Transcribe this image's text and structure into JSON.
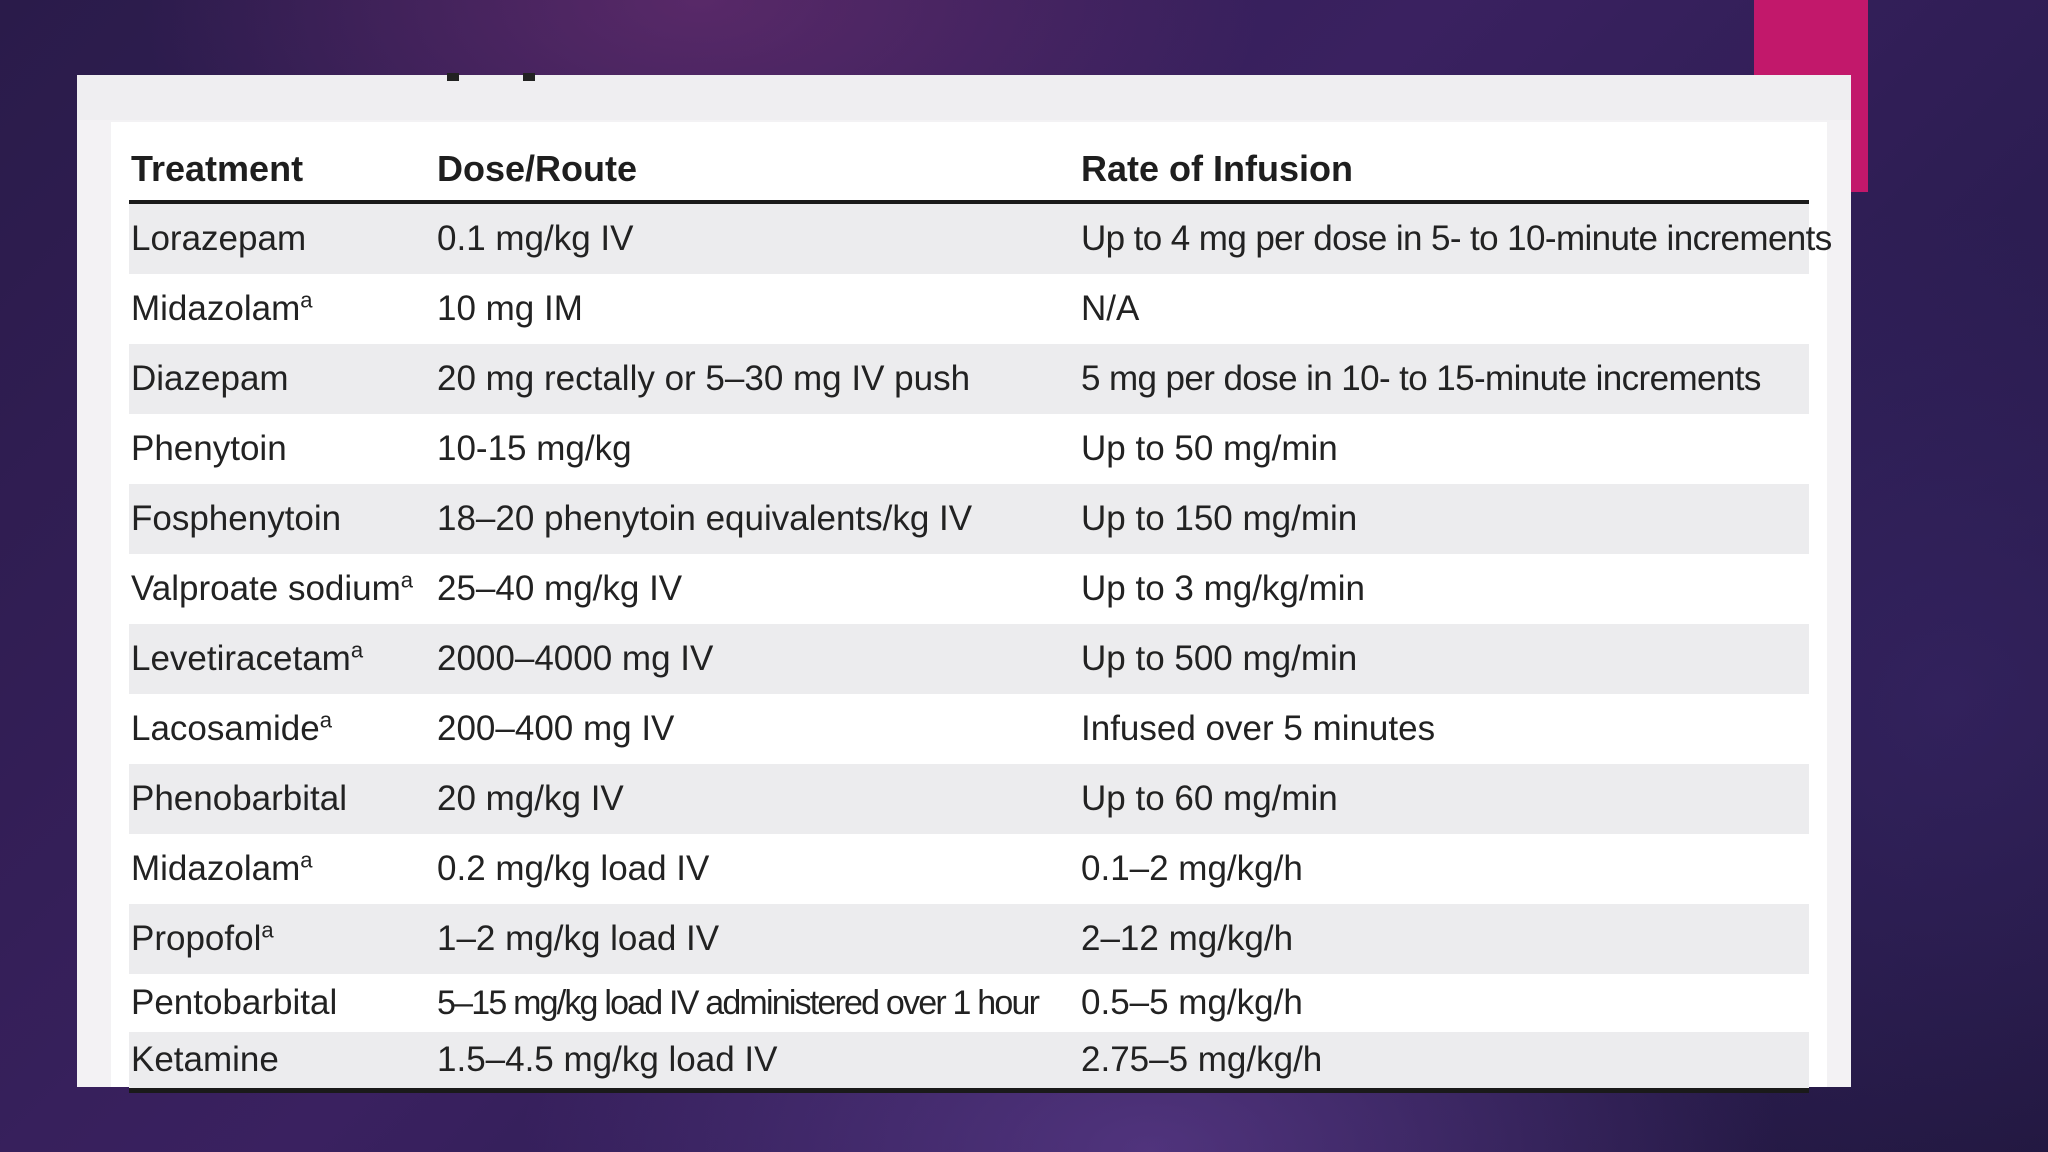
{
  "table": {
    "headers": [
      "Treatment",
      "Dose/Route",
      "Rate of Infusion"
    ],
    "rows": [
      {
        "treatment": "Lorazepam",
        "sup": "",
        "dose": "0.1 mg/kg IV",
        "rate": "Up to 4 mg per dose in 5- to 10-minute increments"
      },
      {
        "treatment": "Midazolam",
        "sup": "a",
        "dose": "10 mg IM",
        "rate": "N/A"
      },
      {
        "treatment": "Diazepam",
        "sup": "",
        "dose": "20 mg rectally or 5–30 mg IV push",
        "rate": "5 mg per dose in 10- to 15-minute increments"
      },
      {
        "treatment": "Phenytoin",
        "sup": "",
        "dose": "10-15 mg/kg",
        "rate": "Up to 50 mg/min"
      },
      {
        "treatment": "Fosphenytoin",
        "sup": "",
        "dose": "18–20 phenytoin equivalents/kg IV",
        "rate": "Up to 150 mg/min"
      },
      {
        "treatment": "Valproate sodium",
        "sup": "a",
        "dose": "25–40 mg/kg IV",
        "rate": "Up to 3 mg/kg/min"
      },
      {
        "treatment": "Levetiracetam",
        "sup": "a",
        "dose": "2000–4000 mg IV",
        "rate": "Up to 500 mg/min"
      },
      {
        "treatment": "Lacosamide",
        "sup": "a",
        "dose": "200–400 mg IV",
        "rate": "Infused over 5 minutes"
      },
      {
        "treatment": "Phenobarbital",
        "sup": "",
        "dose": "20 mg/kg IV",
        "rate": "Up to 60 mg/min"
      },
      {
        "treatment": "Midazolam",
        "sup": "a",
        "dose": "0.2 mg/kg load IV",
        "rate": "0.1–2 mg/kg/h"
      },
      {
        "treatment": "Propofol",
        "sup": "a",
        "dose": "1–2 mg/kg load IV",
        "rate": "2–12 mg/kg/h"
      },
      {
        "treatment": "Pentobarbital",
        "sup": "",
        "dose": "5–15 mg/kg load IV administered over 1 hour",
        "rate": "0.5–5 mg/kg/h"
      },
      {
        "treatment": "Ketamine",
        "sup": "",
        "dose": "1.5–4.5 mg/kg load IV",
        "rate": "2.75–5 mg/kg/h"
      }
    ]
  },
  "colors": {
    "accent": "#c2186b",
    "row_shade": "#ececee",
    "rule": "#1a1a1a"
  }
}
